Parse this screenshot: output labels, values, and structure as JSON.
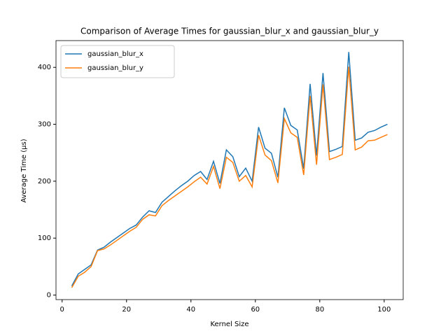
{
  "chart_data": {
    "type": "line",
    "title": "Comparison of Average Times for gaussian_blur_x and gaussian_blur_y",
    "x_label": "Kernel Size",
    "y_label": "Average Time (µs)",
    "x": [
      3,
      5,
      7,
      9,
      11,
      13,
      15,
      17,
      19,
      21,
      23,
      25,
      27,
      29,
      31,
      33,
      35,
      37,
      39,
      41,
      43,
      45,
      47,
      49,
      51,
      53,
      55,
      57,
      59,
      61,
      63,
      65,
      67,
      69,
      71,
      73,
      75,
      77,
      79,
      81,
      83,
      85,
      87,
      89,
      91,
      93,
      95,
      97,
      99,
      101
    ],
    "series": [
      {
        "name": "gaussian_blur_x",
        "color": "#1f77b4",
        "values": [
          16,
          37,
          45,
          53,
          79,
          84,
          93,
          101,
          109,
          117,
          123,
          137,
          148,
          145,
          163,
          173,
          183,
          192,
          200,
          210,
          217,
          203,
          235,
          196,
          255,
          243,
          208,
          223,
          200,
          295,
          258,
          249,
          207,
          329,
          298,
          290,
          222,
          371,
          245,
          390,
          252,
          256,
          261,
          427,
          272,
          276,
          286,
          289,
          295,
          300
        ]
      },
      {
        "name": "gaussian_blur_y",
        "color": "#ff7f0e",
        "values": [
          13,
          33,
          40,
          50,
          78,
          81,
          88,
          96,
          104,
          112,
          119,
          133,
          141,
          139,
          157,
          166,
          174,
          182,
          190,
          199,
          207,
          195,
          226,
          187,
          242,
          233,
          200,
          210,
          190,
          281,
          246,
          236,
          197,
          310,
          285,
          277,
          211,
          350,
          229,
          370,
          238,
          242,
          247,
          401,
          255,
          260,
          271,
          272,
          277,
          282
        ]
      }
    ],
    "xlim": [
      -1.9,
      105.9
    ],
    "ylim": [
      -8,
      447
    ],
    "xticks": [
      0,
      20,
      40,
      60,
      80,
      100
    ],
    "yticks": [
      0,
      100,
      200,
      300,
      400
    ],
    "legend": "upper left"
  }
}
